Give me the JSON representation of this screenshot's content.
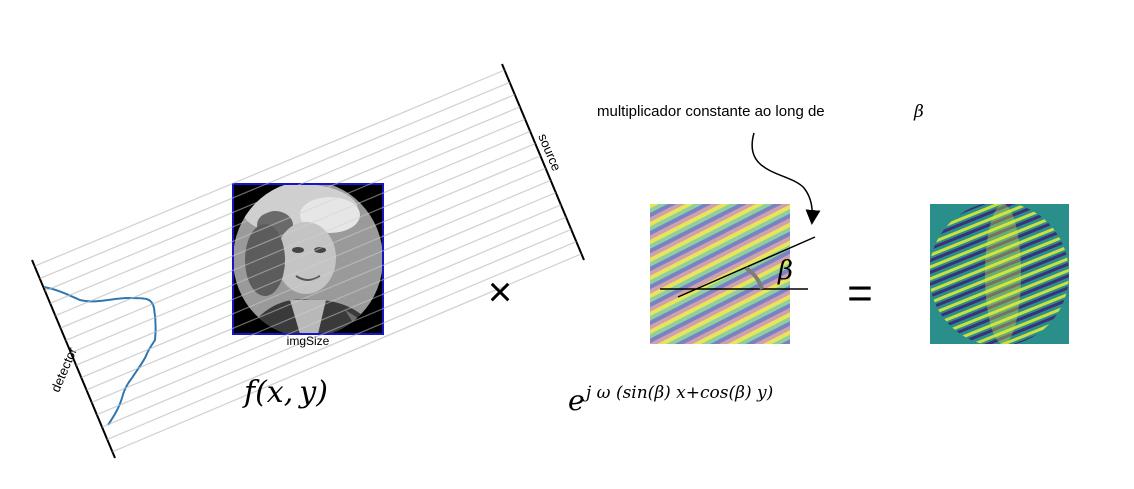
{
  "labels": {
    "source": "source",
    "detector": "detector",
    "img_size": "imgSize",
    "function": "f(x, y)",
    "times": "×",
    "equals": "=",
    "annotation": "multiplicador constante ao long de",
    "annotation_symbol": "β",
    "angle_symbol": "β",
    "exponential_base": "e",
    "exponential_power": "j ω (sin(β) x+cos(β) y)"
  },
  "colors": {
    "ray": "#d2d2d2",
    "profile": "#2f77b1",
    "image_frame": "#1616c8",
    "angle_arc": "#7d7d7d"
  },
  "icons": {
    "portrait": "grayscale-portrait",
    "wave_pattern": "sinusoidal-plane-wave",
    "filtered_result": "filtered-wave-image"
  }
}
